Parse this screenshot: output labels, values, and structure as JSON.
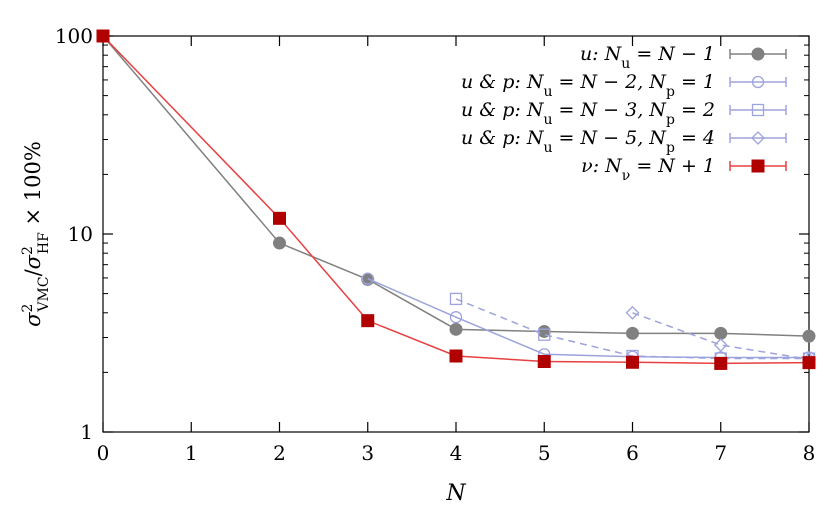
{
  "chart_data": {
    "type": "line",
    "xlabel": "N",
    "ylabel": "σ²VMC/σ²HF × 100%",
    "ylabel_parts": {
      "sigma": "σ",
      "sup1": "2",
      "sub1": "VMC",
      "slash": "/",
      "sup2": "2",
      "sub2": "HF",
      "suffix": " × 100%"
    },
    "yscale": "log",
    "xlim": [
      0,
      8
    ],
    "ylim": [
      1,
      100
    ],
    "x_ticks": [
      0,
      1,
      2,
      3,
      4,
      5,
      6,
      7,
      8
    ],
    "x_tick_labels": [
      "0",
      "1",
      "2",
      "3",
      "4",
      "5",
      "6",
      "7",
      "8"
    ],
    "y_ticks": [
      1,
      10,
      100
    ],
    "y_tick_labels": [
      "1",
      "10",
      "100"
    ],
    "grid": false,
    "legend_position": "top-right",
    "series": [
      {
        "name": "u: Nu = N − 1",
        "legend_parts": {
          "pre": "u: N",
          "sub": "u",
          "post": " = N − 1"
        },
        "color": "#808080",
        "marker": "circle-filled",
        "line": "solid",
        "x": [
          0,
          2,
          3,
          4,
          5,
          6,
          7,
          8
        ],
        "y": [
          100,
          9.0,
          5.9,
          3.3,
          3.22,
          3.15,
          3.15,
          3.05
        ]
      },
      {
        "name": "u & p: Nu = N − 2, Np = 1",
        "legend_parts": {
          "pre": "u & p: N",
          "sub": "u",
          "mid": " = N − 2, N",
          "sub2": "p",
          "post": " = 1"
        },
        "color": "#9da3dc",
        "marker": "circle-open",
        "line": "solid",
        "x": [
          3,
          4,
          5,
          6,
          7,
          8
        ],
        "y": [
          5.95,
          3.8,
          2.47,
          2.4,
          2.38,
          2.38
        ]
      },
      {
        "name": "u & p: Nu = N − 3, Np = 2",
        "legend_parts": {
          "pre": "u & p: N",
          "sub": "u",
          "mid": " = N − 3, N",
          "sub2": "p",
          "post": " = 2"
        },
        "color": "#9da3dc",
        "marker": "square-open",
        "line": "dashed",
        "x": [
          4,
          5,
          6,
          7,
          8
        ],
        "y": [
          4.7,
          3.1,
          2.42,
          2.35,
          2.35
        ]
      },
      {
        "name": "u & p: Nu = N − 5, Np = 4",
        "legend_parts": {
          "pre": "u & p: N",
          "sub": "u",
          "mid": " = N − 5, N",
          "sub2": "p",
          "post": " = 4"
        },
        "color": "#9da3dc",
        "marker": "diamond-open",
        "line": "dashed",
        "x": [
          6,
          7,
          8
        ],
        "y": [
          4.0,
          2.75,
          2.33
        ]
      },
      {
        "name": "ν: Nν = N + 1",
        "legend_parts": {
          "pre": "ν: N",
          "sub": "ν",
          "post": " = N + 1"
        },
        "color": "#b00000",
        "line_color": "#e84040",
        "marker": "square-filled",
        "line": "solid",
        "x": [
          0,
          2,
          3,
          4,
          5,
          6,
          7,
          8
        ],
        "y": [
          100,
          12.0,
          3.65,
          2.42,
          2.27,
          2.25,
          2.22,
          2.24
        ]
      }
    ]
  }
}
